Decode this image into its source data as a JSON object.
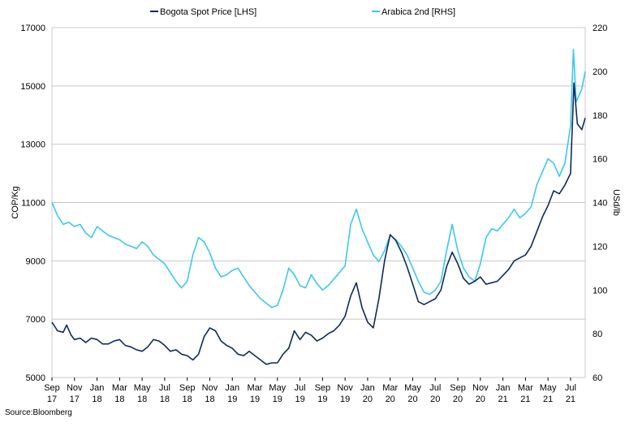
{
  "chart_data": {
    "type": "line",
    "x_ticks": [
      {
        "month": "Sep",
        "year": "17",
        "i": 0
      },
      {
        "month": "Nov",
        "year": "17",
        "i": 2
      },
      {
        "month": "Jan",
        "year": "18",
        "i": 4
      },
      {
        "month": "Mar",
        "year": "18",
        "i": 6
      },
      {
        "month": "May",
        "year": "18",
        "i": 8
      },
      {
        "month": "Jul",
        "year": "18",
        "i": 10
      },
      {
        "month": "Sep",
        "year": "18",
        "i": 12
      },
      {
        "month": "Nov",
        "year": "18",
        "i": 14
      },
      {
        "month": "Jan",
        "year": "19",
        "i": 16
      },
      {
        "month": "Mar",
        "year": "19",
        "i": 18
      },
      {
        "month": "May",
        "year": "19",
        "i": 20
      },
      {
        "month": "Jul",
        "year": "19",
        "i": 22
      },
      {
        "month": "Sep",
        "year": "19",
        "i": 24
      },
      {
        "month": "Nov",
        "year": "19",
        "i": 26
      },
      {
        "month": "Jan",
        "year": "20",
        "i": 28
      },
      {
        "month": "Mar",
        "year": "20",
        "i": 30
      },
      {
        "month": "May",
        "year": "20",
        "i": 32
      },
      {
        "month": "Jul",
        "year": "20",
        "i": 34
      },
      {
        "month": "Sep",
        "year": "20",
        "i": 36
      },
      {
        "month": "Nov",
        "year": "20",
        "i": 38
      },
      {
        "month": "Jan",
        "year": "21",
        "i": 40
      },
      {
        "month": "Mar",
        "year": "21",
        "i": 42
      },
      {
        "month": "May",
        "year": "21",
        "i": 44
      },
      {
        "month": "Jul",
        "year": "21",
        "i": 46
      }
    ],
    "x_domain": [
      0,
      47.3
    ],
    "y_left": {
      "label": "COP/Kg",
      "min": 5000,
      "max": 17000,
      "ticks": [
        5000,
        7000,
        9000,
        11000,
        13000,
        15000,
        17000
      ]
    },
    "y_right": {
      "label": "USd/lb",
      "min": 60,
      "max": 220,
      "ticks": [
        60,
        80,
        100,
        120,
        140,
        160,
        180,
        200,
        220
      ]
    },
    "grid": true,
    "legend_position": "top",
    "series": [
      {
        "name": "Bogota Spot Price [LHS]",
        "axis": "left",
        "color": "#0d2a5c",
        "points": [
          [
            0,
            6900
          ],
          [
            0.5,
            6600
          ],
          [
            1,
            6550
          ],
          [
            1.3,
            6800
          ],
          [
            1.7,
            6450
          ],
          [
            2,
            6300
          ],
          [
            2.5,
            6350
          ],
          [
            3,
            6200
          ],
          [
            3.5,
            6350
          ],
          [
            4,
            6300
          ],
          [
            4.5,
            6150
          ],
          [
            5,
            6150
          ],
          [
            5.5,
            6250
          ],
          [
            6,
            6300
          ],
          [
            6.5,
            6100
          ],
          [
            7,
            6050
          ],
          [
            7.5,
            5950
          ],
          [
            8,
            5900
          ],
          [
            8.5,
            6050
          ],
          [
            9,
            6300
          ],
          [
            9.5,
            6250
          ],
          [
            10,
            6100
          ],
          [
            10.5,
            5900
          ],
          [
            11,
            5950
          ],
          [
            11.5,
            5800
          ],
          [
            12,
            5750
          ],
          [
            12.5,
            5600
          ],
          [
            13,
            5800
          ],
          [
            13.5,
            6400
          ],
          [
            14,
            6700
          ],
          [
            14.5,
            6600
          ],
          [
            15,
            6250
          ],
          [
            15.5,
            6100
          ],
          [
            16,
            6000
          ],
          [
            16.5,
            5800
          ],
          [
            17,
            5750
          ],
          [
            17.5,
            5900
          ],
          [
            18,
            5750
          ],
          [
            18.5,
            5600
          ],
          [
            19,
            5450
          ],
          [
            19.5,
            5500
          ],
          [
            20,
            5500
          ],
          [
            20.5,
            5800
          ],
          [
            21,
            6000
          ],
          [
            21.5,
            6600
          ],
          [
            22,
            6300
          ],
          [
            22.5,
            6550
          ],
          [
            23,
            6450
          ],
          [
            23.5,
            6250
          ],
          [
            24,
            6350
          ],
          [
            24.5,
            6500
          ],
          [
            25,
            6600
          ],
          [
            25.5,
            6800
          ],
          [
            26,
            7100
          ],
          [
            26.5,
            7800
          ],
          [
            27,
            8250
          ],
          [
            27.5,
            7400
          ],
          [
            28,
            6900
          ],
          [
            28.5,
            6700
          ],
          [
            29,
            7700
          ],
          [
            29.5,
            9000
          ],
          [
            30,
            9900
          ],
          [
            30.5,
            9700
          ],
          [
            31,
            9300
          ],
          [
            31.5,
            8800
          ],
          [
            32,
            8200
          ],
          [
            32.5,
            7600
          ],
          [
            33,
            7500
          ],
          [
            33.5,
            7600
          ],
          [
            34,
            7700
          ],
          [
            34.5,
            8000
          ],
          [
            35,
            8800
          ],
          [
            35.5,
            9300
          ],
          [
            36,
            8900
          ],
          [
            36.5,
            8400
          ],
          [
            37,
            8200
          ],
          [
            37.5,
            8300
          ],
          [
            38,
            8450
          ],
          [
            38.5,
            8200
          ],
          [
            39,
            8250
          ],
          [
            39.5,
            8300
          ],
          [
            40,
            8500
          ],
          [
            40.5,
            8700
          ],
          [
            41,
            9000
          ],
          [
            41.5,
            9100
          ],
          [
            42,
            9200
          ],
          [
            42.5,
            9500
          ],
          [
            43,
            10000
          ],
          [
            43.5,
            10500
          ],
          [
            44,
            10900
          ],
          [
            44.5,
            11400
          ],
          [
            45,
            11300
          ],
          [
            45.5,
            11600
          ],
          [
            46,
            12000
          ],
          [
            46.3,
            15100
          ],
          [
            46.6,
            13700
          ],
          [
            47,
            13500
          ],
          [
            47.3,
            13900
          ]
        ]
      },
      {
        "name": "Arabica 2nd [RHS]",
        "axis": "right",
        "color": "#3cc8ee",
        "points": [
          [
            0,
            140
          ],
          [
            0.5,
            134
          ],
          [
            1,
            130
          ],
          [
            1.5,
            131
          ],
          [
            2,
            129
          ],
          [
            2.5,
            130
          ],
          [
            3,
            126
          ],
          [
            3.5,
            124
          ],
          [
            4,
            129
          ],
          [
            4.5,
            127
          ],
          [
            5,
            125
          ],
          [
            5.5,
            124
          ],
          [
            6,
            123
          ],
          [
            6.5,
            121
          ],
          [
            7,
            120
          ],
          [
            7.5,
            119
          ],
          [
            8,
            122
          ],
          [
            8.5,
            120
          ],
          [
            9,
            116
          ],
          [
            9.5,
            114
          ],
          [
            10,
            112
          ],
          [
            10.5,
            108
          ],
          [
            11,
            104
          ],
          [
            11.5,
            101
          ],
          [
            12,
            104
          ],
          [
            12.5,
            116
          ],
          [
            13,
            124
          ],
          [
            13.5,
            122
          ],
          [
            14,
            117
          ],
          [
            14.5,
            110
          ],
          [
            15,
            106
          ],
          [
            15.5,
            107
          ],
          [
            16,
            109
          ],
          [
            16.5,
            110
          ],
          [
            17,
            106
          ],
          [
            17.5,
            102
          ],
          [
            18,
            99
          ],
          [
            18.5,
            96
          ],
          [
            19,
            94
          ],
          [
            19.5,
            92
          ],
          [
            20,
            93
          ],
          [
            20.5,
            100
          ],
          [
            21,
            110
          ],
          [
            21.5,
            107
          ],
          [
            22,
            102
          ],
          [
            22.5,
            101
          ],
          [
            23,
            107
          ],
          [
            23.5,
            103
          ],
          [
            24,
            100
          ],
          [
            24.5,
            102
          ],
          [
            25,
            105
          ],
          [
            25.5,
            108
          ],
          [
            26,
            111
          ],
          [
            26.5,
            130
          ],
          [
            27,
            137
          ],
          [
            27.5,
            128
          ],
          [
            28,
            122
          ],
          [
            28.5,
            116
          ],
          [
            29,
            113
          ],
          [
            29.5,
            118
          ],
          [
            30,
            125
          ],
          [
            30.5,
            123
          ],
          [
            31,
            120
          ],
          [
            31.5,
            116
          ],
          [
            32,
            110
          ],
          [
            32.5,
            104
          ],
          [
            33,
            99
          ],
          [
            33.5,
            98
          ],
          [
            34,
            100
          ],
          [
            34.5,
            104
          ],
          [
            35,
            118
          ],
          [
            35.5,
            130
          ],
          [
            36,
            118
          ],
          [
            36.5,
            110
          ],
          [
            37,
            106
          ],
          [
            37.5,
            104
          ],
          [
            38,
            112
          ],
          [
            38.5,
            124
          ],
          [
            39,
            128
          ],
          [
            39.5,
            127
          ],
          [
            40,
            130
          ],
          [
            40.5,
            133
          ],
          [
            41,
            137
          ],
          [
            41.5,
            133
          ],
          [
            42,
            135
          ],
          [
            42.5,
            138
          ],
          [
            43,
            148
          ],
          [
            43.5,
            154
          ],
          [
            44,
            160
          ],
          [
            44.5,
            158
          ],
          [
            45,
            152
          ],
          [
            45.5,
            158
          ],
          [
            46,
            175
          ],
          [
            46.25,
            210
          ],
          [
            46.5,
            186
          ],
          [
            47,
            192
          ],
          [
            47.3,
            200
          ]
        ]
      }
    ]
  },
  "source": "Source:Bloomberg"
}
